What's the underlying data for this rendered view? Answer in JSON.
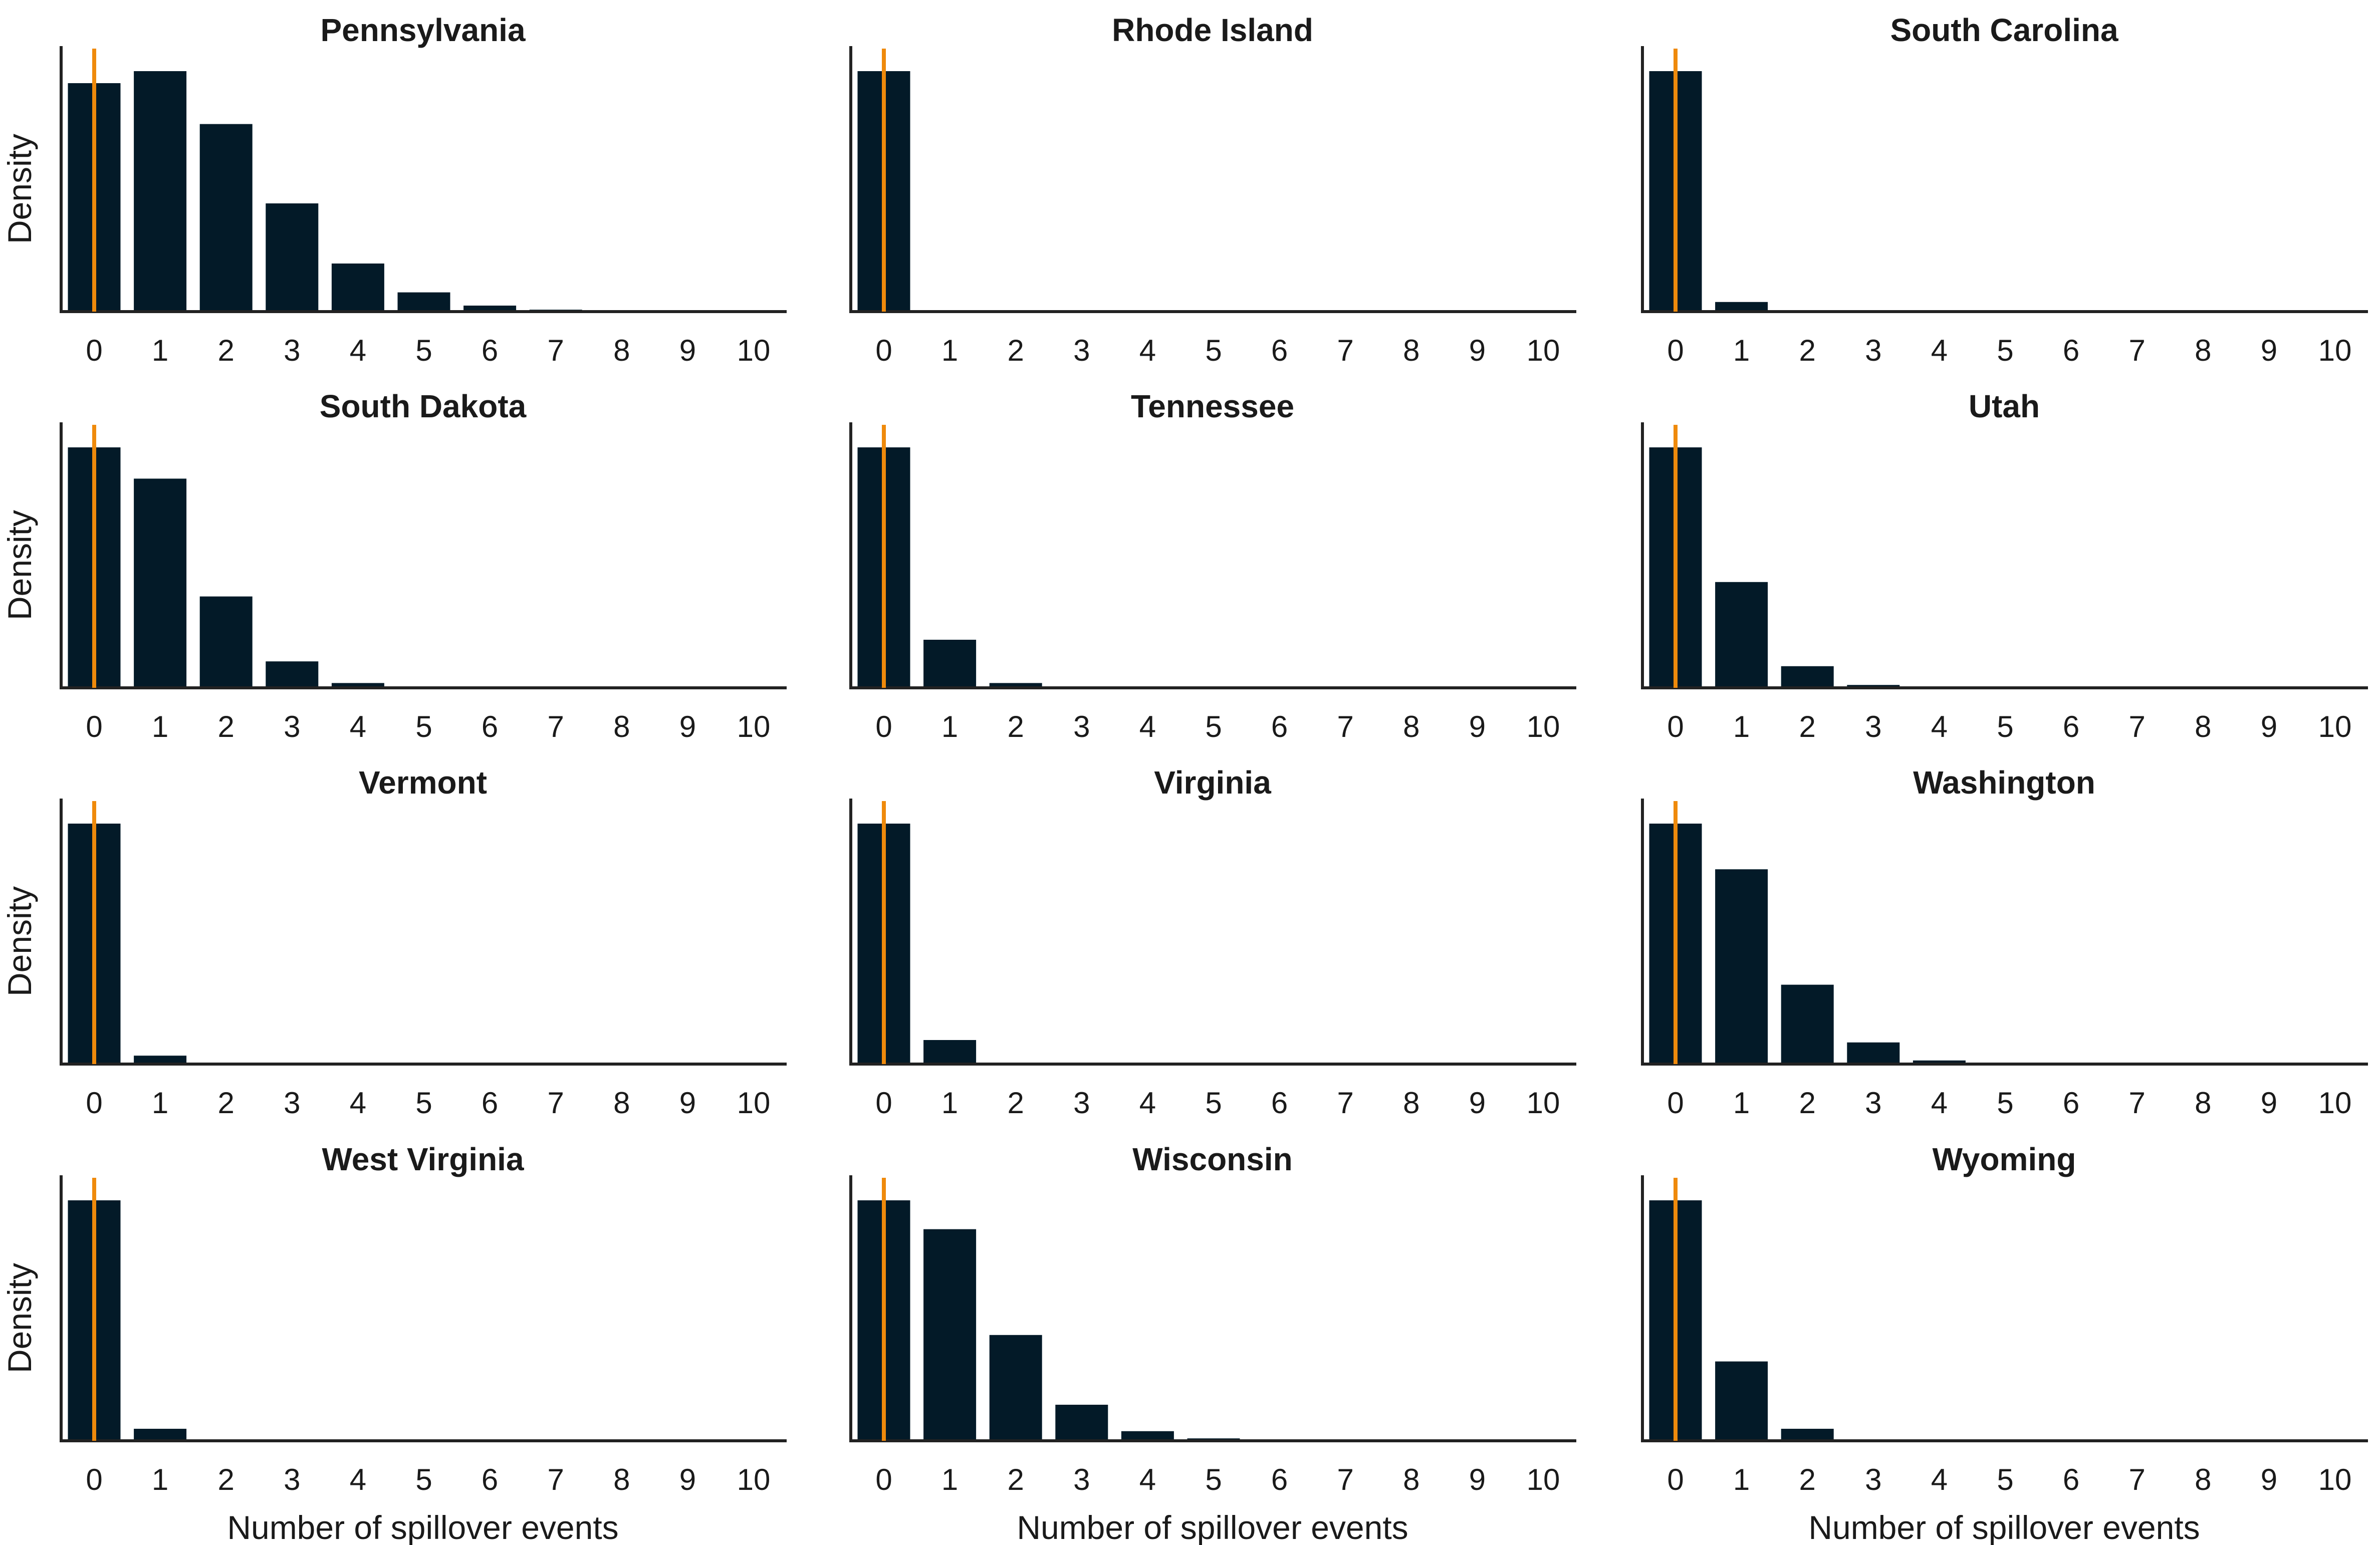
{
  "colors": {
    "bar": "#031a28",
    "marker_line": "#ef8a0c",
    "axis": "#222222",
    "text": "#1a1a1a"
  },
  "chart_data": {
    "type": "bar",
    "layout": "small-multiples 4x3",
    "ylabel": "Density",
    "xlabel": "Number of spillover events",
    "categories": [
      "0",
      "1",
      "2",
      "3",
      "4",
      "5",
      "6",
      "7",
      "8",
      "9",
      "10"
    ],
    "marker_x": 0,
    "ylim": [
      0,
      1
    ],
    "grid": false,
    "legend": "none",
    "panels": [
      {
        "title": "Pennsylvania",
        "values": [
          0.95,
          1.0,
          0.78,
          0.45,
          0.2,
          0.08,
          0.025,
          0.008,
          0.002,
          0,
          0
        ]
      },
      {
        "title": "Rhode Island",
        "values": [
          1.0,
          0,
          0,
          0,
          0,
          0,
          0,
          0,
          0,
          0,
          0
        ]
      },
      {
        "title": "South Carolina",
        "values": [
          1.0,
          0.04,
          0,
          0,
          0,
          0,
          0,
          0,
          0,
          0,
          0
        ]
      },
      {
        "title": "South Dakota",
        "values": [
          1.0,
          0.87,
          0.38,
          0.11,
          0.02,
          0.003,
          0,
          0,
          0,
          0,
          0
        ]
      },
      {
        "title": "Tennessee",
        "values": [
          1.0,
          0.2,
          0.02,
          0.002,
          0,
          0,
          0,
          0,
          0,
          0,
          0
        ]
      },
      {
        "title": "Utah",
        "values": [
          1.0,
          0.44,
          0.09,
          0.012,
          0.001,
          0,
          0,
          0,
          0,
          0,
          0
        ]
      },
      {
        "title": "Vermont",
        "values": [
          1.0,
          0.035,
          0.001,
          0,
          0,
          0,
          0,
          0,
          0,
          0,
          0
        ]
      },
      {
        "title": "Virginia",
        "values": [
          1.0,
          0.1,
          0.005,
          0,
          0,
          0,
          0,
          0,
          0,
          0,
          0
        ]
      },
      {
        "title": "Washington",
        "values": [
          1.0,
          0.81,
          0.33,
          0.09,
          0.015,
          0.002,
          0,
          0,
          0,
          0,
          0
        ]
      },
      {
        "title": "West Virginia",
        "values": [
          1.0,
          0.05,
          0.001,
          0,
          0,
          0,
          0,
          0,
          0,
          0,
          0
        ]
      },
      {
        "title": "Wisconsin",
        "values": [
          1.0,
          0.88,
          0.44,
          0.15,
          0.04,
          0.01,
          0.002,
          0,
          0,
          0,
          0
        ]
      },
      {
        "title": "Wyoming",
        "values": [
          1.0,
          0.33,
          0.05,
          0.005,
          0,
          0,
          0,
          0,
          0,
          0,
          0
        ]
      }
    ]
  }
}
